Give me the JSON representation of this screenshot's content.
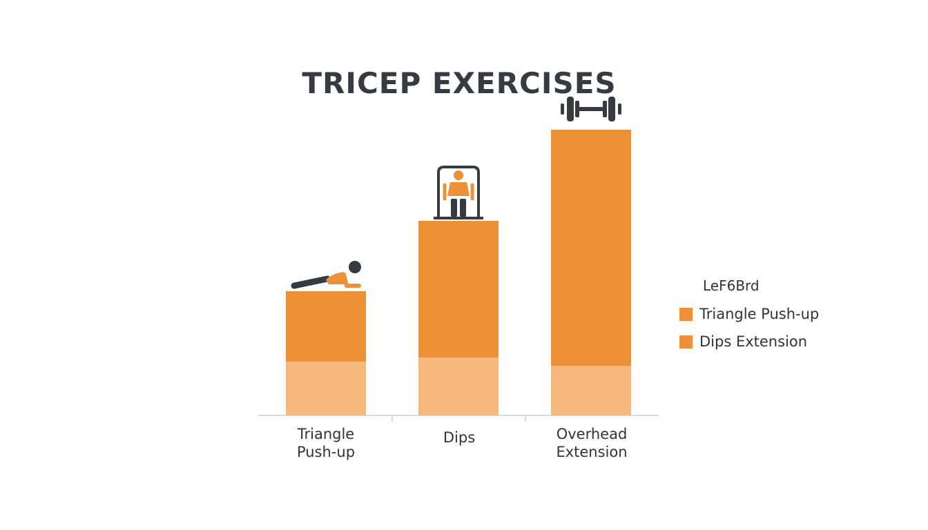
{
  "colors": {
    "bar_main": "#ee9038",
    "bar_base": "#f5b77c",
    "axis": "#cfcfcf",
    "icon_dark": "#353b40",
    "icon_accent": "#ee9038"
  },
  "chart_data": {
    "type": "bar",
    "title": "TRICEP EXERCISES",
    "categories": [
      "Triangle\nPush-up",
      "Dips",
      "Overhead\nExtension"
    ],
    "series": [
      {
        "name": "Dips Extension",
        "values": [
          1.3,
          1.4,
          1.2
        ],
        "color": "#f5b77c"
      },
      {
        "name": "Triangle Push-up",
        "values": [
          1.7,
          3.3,
          5.7
        ],
        "color": "#ee9038"
      }
    ],
    "ylim": [
      0,
      7
    ],
    "grid": false,
    "legend": {
      "title": "LeF6Brd",
      "placement": "right",
      "items": [
        {
          "label": "Triangle Push-up",
          "color": "#ee9038"
        },
        {
          "label": "Dips Extension",
          "color": "#ee9038"
        }
      ]
    },
    "icons": [
      "push-up-icon",
      "dips-icon",
      "dumbbell-icon"
    ]
  }
}
